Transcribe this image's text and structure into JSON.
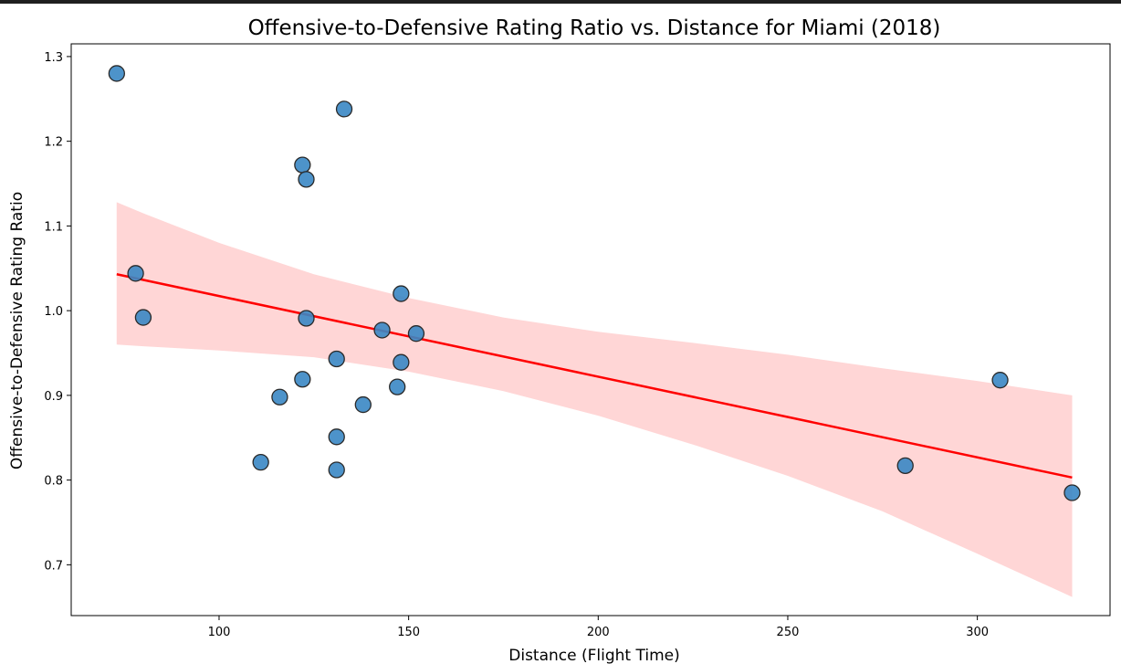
{
  "chart_data": {
    "type": "scatter",
    "title": "Offensive-to-Defensive Rating Ratio vs. Distance for Miami (2018)",
    "xlabel": "Distance (Flight Time)",
    "ylabel": "Offensive-to-Defensive Rating Ratio",
    "xlim": [
      61,
      335
    ],
    "ylim": [
      0.64,
      1.315
    ],
    "xticks": [
      100,
      150,
      200,
      250,
      300
    ],
    "yticks": [
      0.7,
      0.8,
      0.9,
      1.0,
      1.1,
      1.2,
      1.3
    ],
    "xtick_labels": [
      "100",
      "150",
      "200",
      "250",
      "300"
    ],
    "ytick_labels": [
      "0.7",
      "0.8",
      "0.9",
      "1.0",
      "1.1",
      "1.2",
      "1.3"
    ],
    "grid": false,
    "points": {
      "x": [
        73,
        78,
        80,
        111,
        116,
        122,
        122,
        123,
        123,
        131,
        131,
        131,
        133,
        138,
        143,
        147,
        148,
        148,
        152,
        281,
        306,
        325
      ],
      "y": [
        1.28,
        1.044,
        0.992,
        0.821,
        0.898,
        0.919,
        1.172,
        1.155,
        0.991,
        0.943,
        0.851,
        0.812,
        1.238,
        0.889,
        0.977,
        0.91,
        1.02,
        0.939,
        0.973,
        0.817,
        0.918,
        0.785
      ]
    },
    "regression": {
      "x": [
        73,
        325
      ],
      "y": [
        1.043,
        0.803
      ]
    },
    "confidence_band": {
      "x": [
        73,
        80,
        100,
        125,
        150,
        175,
        200,
        225,
        250,
        275,
        300,
        325
      ],
      "upper": [
        1.128,
        1.115,
        1.08,
        1.043,
        1.015,
        0.992,
        0.975,
        0.962,
        0.948,
        0.932,
        0.917,
        0.9
      ],
      "lower": [
        0.96,
        0.958,
        0.953,
        0.945,
        0.928,
        0.905,
        0.876,
        0.842,
        0.805,
        0.763,
        0.713,
        0.662
      ]
    },
    "colors": {
      "points": "#3a87c4",
      "point_edge": "#2a2a2a",
      "regression": "#ff0000",
      "band": "#ffd6d6"
    }
  }
}
